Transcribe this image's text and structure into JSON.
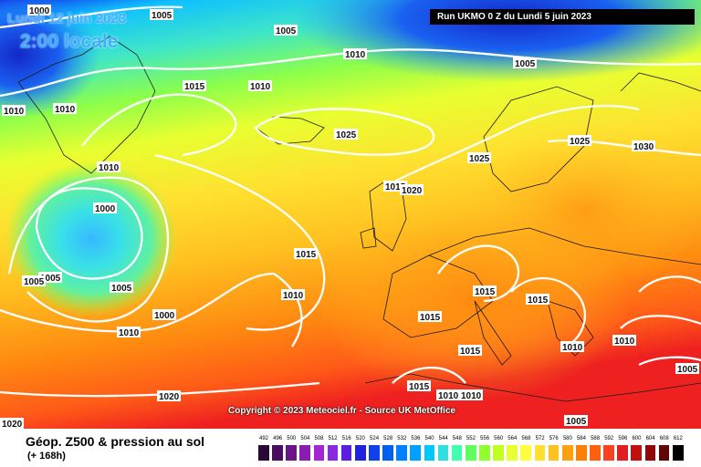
{
  "header": {
    "date": "Lundi 12 juin 2023",
    "local_time": "2:00 locale",
    "run": "Run UKMO 0 Z du Lundi 5 juin 2023"
  },
  "footer": {
    "product": "Géop. Z500 & pression au sol",
    "lead_time": "(+ 168h)",
    "copyright": "Copyright © 2023 Meteociel.fr - Source UK MetOffice"
  },
  "isobar_labels": [
    "1000",
    "1005",
    "1005",
    "1010",
    "1010",
    "1010",
    "1010",
    "1010",
    "1005",
    "1025",
    "1025",
    "1015",
    "1015",
    "1025",
    "1020",
    "1030",
    "1000",
    "1005",
    "1005",
    "1005",
    "1000",
    "1010",
    "1015",
    "1010",
    "1015",
    "1015",
    "1015",
    "1010",
    "1010",
    "1020",
    "1015",
    "1015",
    "1010",
    "1010",
    "1005",
    "1005",
    "1020"
  ],
  "scale": {
    "values": [
      "492",
      "496",
      "500",
      "504",
      "508",
      "512",
      "516",
      "520",
      "524",
      "528",
      "532",
      "536",
      "540",
      "544",
      "548",
      "552",
      "556",
      "560",
      "564",
      "568",
      "572",
      "576",
      "580",
      "584",
      "588",
      "592",
      "596",
      "600",
      "604",
      "608",
      "612"
    ],
    "colors": [
      "#2a0836",
      "#4a0d5e",
      "#6a1487",
      "#8a1cb0",
      "#a624d6",
      "#8a2be2",
      "#5a1ee0",
      "#2020e0",
      "#1040e8",
      "#0060f0",
      "#0080ff",
      "#00a0ff",
      "#00c8ff",
      "#30e0e0",
      "#40ffb0",
      "#60ff60",
      "#90ff30",
      "#c0ff20",
      "#e8ff30",
      "#ffff40",
      "#ffe030",
      "#ffc020",
      "#ffa010",
      "#ff8000",
      "#ff6010",
      "#ff4020",
      "#e02020",
      "#c01010",
      "#900808",
      "#600404",
      "#000000"
    ]
  }
}
